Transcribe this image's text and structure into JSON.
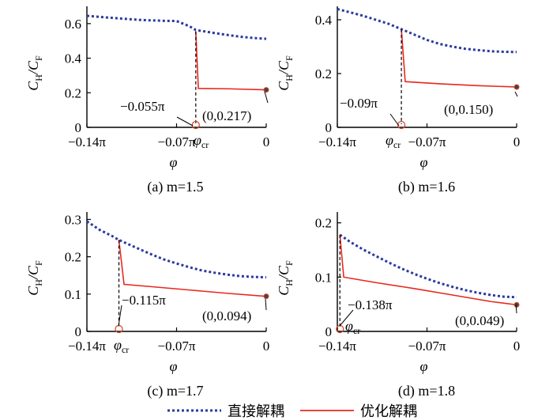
{
  "legend": [
    {
      "label": "直接解耦",
      "color": "#2b3a9e",
      "style": "dashed"
    },
    {
      "label": "优化解耦",
      "color": "#e8281e",
      "style": "solid"
    }
  ],
  "chart_data": [
    {
      "type": "line",
      "caption": "(a)  m=1.5",
      "xlabel": "φ",
      "ylabel": "CH/CF",
      "xlim": [
        -0.14,
        0
      ],
      "ylim": [
        0,
        0.7
      ],
      "x_unit": "π",
      "xticks": [
        -0.14,
        -0.07,
        0
      ],
      "xtick_labels": [
        "−0.14π",
        "−0.07π",
        "0"
      ],
      "yticks": [
        0,
        0.2,
        0.4,
        0.6
      ],
      "ytick_labels": [
        "0",
        "0.2",
        "0.4",
        "0.6"
      ],
      "series": [
        {
          "name": "直接解耦",
          "x": [
            -0.14,
            -0.12,
            -0.1,
            -0.08,
            -0.07,
            -0.06,
            -0.055,
            -0.04,
            -0.03,
            -0.02,
            -0.01,
            0
          ],
          "y": [
            0.645,
            0.633,
            0.622,
            0.616,
            0.615,
            0.585,
            0.563,
            0.545,
            0.534,
            0.524,
            0.517,
            0.512
          ]
        },
        {
          "name": "优化解耦",
          "x": [
            -0.055,
            -0.053,
            -0.03,
            0
          ],
          "y": [
            0.555,
            0.225,
            0.223,
            0.217
          ]
        }
      ],
      "phi_cr": -0.055,
      "phi_cr_label": "φcr",
      "annotations": [
        {
          "text": "−0.055π"
        },
        {
          "text": "(0,0.217)"
        }
      ]
    },
    {
      "type": "line",
      "caption": "(b)  m=1.6",
      "xlabel": "φ",
      "ylabel": "CH/CF",
      "xlim": [
        -0.14,
        0
      ],
      "ylim": [
        0,
        0.45
      ],
      "x_unit": "π",
      "xticks": [
        -0.14,
        -0.07,
        0
      ],
      "xtick_labels": [
        "−0.14π",
        "−0.07π",
        "0"
      ],
      "yticks": [
        0,
        0.2,
        0.4
      ],
      "ytick_labels": [
        "0",
        "0.2",
        "0.4"
      ],
      "series": [
        {
          "name": "直接解耦",
          "x": [
            -0.14,
            -0.12,
            -0.1,
            -0.09,
            -0.08,
            -0.07,
            -0.06,
            -0.05,
            -0.04,
            -0.03,
            -0.02,
            -0.01,
            0
          ],
          "y": [
            0.44,
            0.415,
            0.385,
            0.365,
            0.345,
            0.325,
            0.31,
            0.3,
            0.292,
            0.287,
            0.283,
            0.281,
            0.28
          ]
        },
        {
          "name": "优化解耦",
          "x": [
            -0.09,
            -0.087,
            -0.06,
            -0.03,
            0
          ],
          "y": [
            0.365,
            0.17,
            0.162,
            0.155,
            0.15
          ]
        }
      ],
      "phi_cr": -0.09,
      "phi_cr_label": "φcr",
      "annotations": [
        {
          "text": "−0.09π"
        },
        {
          "text": "(0,0.150)"
        }
      ]
    },
    {
      "type": "line",
      "caption": "(c)  m=1.7",
      "xlabel": "φ",
      "ylabel": "CH/CF",
      "xlim": [
        -0.14,
        0
      ],
      "ylim": [
        0,
        0.32
      ],
      "x_unit": "π",
      "xticks": [
        -0.14,
        -0.07,
        0
      ],
      "xtick_labels": [
        "−0.14π",
        "−0.07π",
        "0"
      ],
      "yticks": [
        0,
        0.1,
        0.2,
        0.3
      ],
      "ytick_labels": [
        "0",
        "0.1",
        "0.2",
        "0.3"
      ],
      "series": [
        {
          "name": "直接解耦",
          "x": [
            -0.14,
            -0.13,
            -0.12,
            -0.115,
            -0.1,
            -0.09,
            -0.08,
            -0.07,
            -0.06,
            -0.05,
            -0.04,
            -0.03,
            -0.02,
            -0.01,
            0
          ],
          "y": [
            0.295,
            0.272,
            0.255,
            0.245,
            0.222,
            0.207,
            0.193,
            0.182,
            0.172,
            0.163,
            0.157,
            0.152,
            0.148,
            0.146,
            0.145
          ]
        },
        {
          "name": "优化解耦",
          "x": [
            -0.115,
            -0.111,
            -0.09,
            -0.06,
            -0.03,
            0
          ],
          "y": [
            0.245,
            0.126,
            0.12,
            0.111,
            0.102,
            0.094
          ]
        }
      ],
      "phi_cr": -0.115,
      "phi_cr_label": "φcr",
      "annotations": [
        {
          "text": "−0.115π"
        },
        {
          "text": "(0,0.094)"
        }
      ]
    },
    {
      "type": "line",
      "caption": "(d)  m=1.8",
      "xlabel": "φ",
      "ylabel": "CH/CF",
      "xlim": [
        -0.14,
        0
      ],
      "ylim": [
        0,
        0.22
      ],
      "x_unit": "π",
      "xticks": [
        -0.14,
        -0.07,
        0
      ],
      "xtick_labels": [
        "−0.14π",
        "−0.07π",
        "0"
      ],
      "yticks": [
        0,
        0.1,
        0.2
      ],
      "ytick_labels": [
        "0",
        "0.1",
        "0.2"
      ],
      "series": [
        {
          "name": "直接解耦",
          "x": [
            -0.138,
            -0.13,
            -0.12,
            -0.11,
            -0.1,
            -0.09,
            -0.08,
            -0.07,
            -0.06,
            -0.05,
            -0.04,
            -0.03,
            -0.02,
            -0.01,
            0
          ],
          "y": [
            0.178,
            0.165,
            0.151,
            0.139,
            0.127,
            0.116,
            0.106,
            0.097,
            0.089,
            0.082,
            0.076,
            0.071,
            0.067,
            0.064,
            0.063
          ]
        },
        {
          "name": "优化解耦",
          "x": [
            -0.138,
            -0.135,
            -0.11,
            -0.08,
            -0.05,
            -0.02,
            0
          ],
          "y": [
            0.178,
            0.1,
            0.09,
            0.079,
            0.067,
            0.055,
            0.049
          ]
        }
      ],
      "phi_cr": -0.138,
      "phi_cr_label": "φcr",
      "annotations": [
        {
          "text": "−0.138π"
        },
        {
          "text": "(0,0.049)"
        }
      ]
    }
  ]
}
